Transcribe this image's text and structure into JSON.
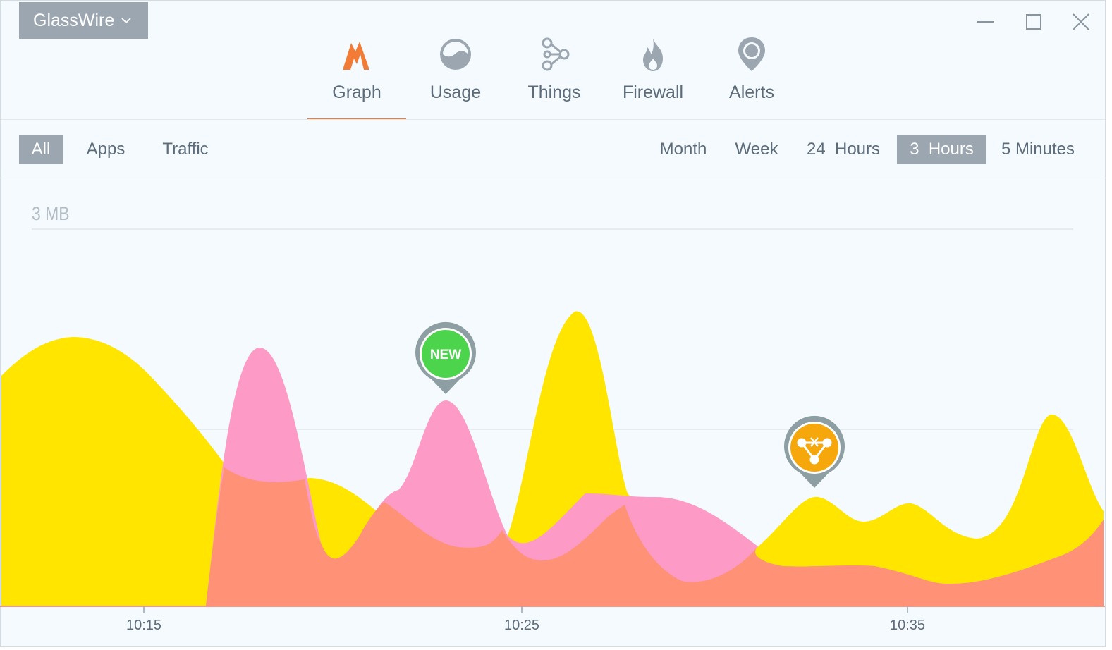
{
  "app": {
    "name": "GlassWire"
  },
  "tabs": [
    {
      "label": "Graph",
      "icon": "graph-icon",
      "active": true
    },
    {
      "label": "Usage",
      "icon": "usage-icon"
    },
    {
      "label": "Things",
      "icon": "things-icon"
    },
    {
      "label": "Firewall",
      "icon": "firewall-icon"
    },
    {
      "label": "Alerts",
      "icon": "alerts-icon"
    }
  ],
  "filters": {
    "all": "All",
    "apps": "Apps",
    "traffic": "Traffic",
    "selected": "All"
  },
  "ranges": {
    "month": "Month",
    "week": "Week",
    "day": "24  Hours",
    "three": "3  Hours",
    "five": "5 Minutes",
    "selected": "3  Hours"
  },
  "graph": {
    "y_label": "3 MB",
    "x_ticks": [
      "10:15",
      "10:25",
      "10:35"
    ],
    "badges": {
      "new": "NEW"
    }
  },
  "colors": {
    "accent": "#f27b35",
    "yellow": "#ffe500",
    "pink": "#fd9bc6",
    "salmon": "#ff9176",
    "badge_new": "#4cd44c",
    "badge_alert": "#f5a70c",
    "selected": "#9ba6b1"
  }
}
